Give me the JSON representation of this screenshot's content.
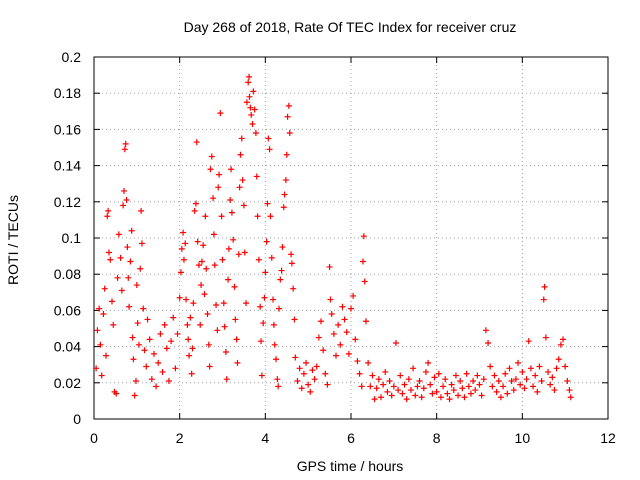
{
  "chart_data": {
    "type": "scatter",
    "title": "Day 268 of 2018, Rate Of TEC Index for receiver cruz",
    "xlabel": "GPS time / hours",
    "ylabel": "ROTI / TECUs",
    "xlim": [
      0,
      12
    ],
    "ylim": [
      0,
      0.2
    ],
    "x_ticks": [
      0,
      2,
      4,
      6,
      8,
      10,
      12
    ],
    "x_tick_labels": [
      "0",
      "2",
      "4",
      "6",
      "8",
      "10",
      "12"
    ],
    "y_ticks": [
      0,
      0.02,
      0.04,
      0.06,
      0.08,
      0.1,
      0.12,
      0.14,
      0.16,
      0.18,
      0.2
    ],
    "y_tick_labels": [
      "0",
      "0.02",
      "0.04",
      "0.06",
      "0.08",
      "0.1",
      "0.12",
      "0.14",
      "0.16",
      "0.18",
      "0.2"
    ],
    "grid": true,
    "marker": "+",
    "series": [
      {
        "name": "ROTI",
        "color": "#ff0000",
        "points": [
          [
            0.05,
            0.028
          ],
          [
            0.08,
            0.049
          ],
          [
            0.12,
            0.061
          ],
          [
            0.15,
            0.041
          ],
          [
            0.18,
            0.024
          ],
          [
            0.22,
            0.058
          ],
          [
            0.25,
            0.072
          ],
          [
            0.28,
            0.035
          ],
          [
            0.31,
            0.112
          ],
          [
            0.33,
            0.115
          ],
          [
            0.35,
            0.092
          ],
          [
            0.38,
            0.088
          ],
          [
            0.42,
            0.065
          ],
          [
            0.45,
            0.052
          ],
          [
            0.48,
            0.015
          ],
          [
            0.52,
            0.014
          ],
          [
            0.55,
            0.078
          ],
          [
            0.58,
            0.102
          ],
          [
            0.62,
            0.089
          ],
          [
            0.65,
            0.071
          ],
          [
            0.68,
            0.118
          ],
          [
            0.7,
            0.126
          ],
          [
            0.72,
            0.149
          ],
          [
            0.74,
            0.152
          ],
          [
            0.76,
            0.121
          ],
          [
            0.78,
            0.095
          ],
          [
            0.8,
            0.078
          ],
          [
            0.82,
            0.062
          ],
          [
            0.85,
            0.087
          ],
          [
            0.88,
            0.104
          ],
          [
            0.9,
            0.045
          ],
          [
            0.92,
            0.033
          ],
          [
            0.95,
            0.013
          ],
          [
            0.98,
            0.021
          ],
          [
            1.0,
            0.074
          ],
          [
            1.02,
            0.053
          ],
          [
            1.05,
            0.041
          ],
          [
            1.08,
            0.083
          ],
          [
            1.1,
            0.115
          ],
          [
            1.12,
            0.097
          ],
          [
            1.15,
            0.061
          ],
          [
            1.18,
            0.038
          ],
          [
            1.22,
            0.029
          ],
          [
            1.25,
            0.055
          ],
          [
            1.3,
            0.044
          ],
          [
            1.35,
            0.022
          ],
          [
            1.4,
            0.036
          ],
          [
            1.45,
            0.018
          ],
          [
            1.5,
            0.031
          ],
          [
            1.55,
            0.047
          ],
          [
            1.6,
            0.026
          ],
          [
            1.65,
            0.052
          ],
          [
            1.7,
            0.039
          ],
          [
            1.75,
            0.021
          ],
          [
            1.8,
            0.043
          ],
          [
            1.85,
            0.056
          ],
          [
            1.9,
            0.028
          ],
          [
            1.95,
            0.047
          ],
          [
            2.0,
            0.067
          ],
          [
            2.03,
            0.081
          ],
          [
            2.05,
            0.094
          ],
          [
            2.08,
            0.103
          ],
          [
            2.1,
            0.088
          ],
          [
            2.13,
            0.097
          ],
          [
            2.15,
            0.066
          ],
          [
            2.18,
            0.052
          ],
          [
            2.2,
            0.044
          ],
          [
            2.22,
            0.035
          ],
          [
            2.25,
            0.056
          ],
          [
            2.28,
            0.025
          ],
          [
            2.3,
            0.039
          ],
          [
            2.32,
            0.064
          ],
          [
            2.35,
            0.115
          ],
          [
            2.38,
            0.119
          ],
          [
            2.4,
            0.153
          ],
          [
            2.42,
            0.098
          ],
          [
            2.45,
            0.085
          ],
          [
            2.48,
            0.052
          ],
          [
            2.5,
            0.074
          ],
          [
            2.52,
            0.087
          ],
          [
            2.55,
            0.096
          ],
          [
            2.58,
            0.069
          ],
          [
            2.6,
            0.112
          ],
          [
            2.62,
            0.083
          ],
          [
            2.65,
            0.058
          ],
          [
            2.68,
            0.041
          ],
          [
            2.7,
            0.029
          ],
          [
            2.72,
            0.138
          ],
          [
            2.75,
            0.145
          ],
          [
            2.78,
            0.122
          ],
          [
            2.8,
            0.102
          ],
          [
            2.82,
            0.085
          ],
          [
            2.85,
            0.063
          ],
          [
            2.88,
            0.049
          ],
          [
            2.9,
            0.128
          ],
          [
            2.92,
            0.135
          ],
          [
            2.95,
            0.169
          ],
          [
            2.98,
            0.112
          ],
          [
            3.0,
            0.088
          ],
          [
            3.03,
            0.064
          ],
          [
            3.05,
            0.051
          ],
          [
            3.08,
            0.037
          ],
          [
            3.1,
            0.022
          ],
          [
            3.13,
            0.077
          ],
          [
            3.15,
            0.094
          ],
          [
            3.18,
            0.121
          ],
          [
            3.2,
            0.138
          ],
          [
            3.22,
            0.114
          ],
          [
            3.25,
            0.099
          ],
          [
            3.28,
            0.073
          ],
          [
            3.3,
            0.055
          ],
          [
            3.33,
            0.044
          ],
          [
            3.35,
            0.031
          ],
          [
            3.38,
            0.091
          ],
          [
            3.4,
            0.128
          ],
          [
            3.42,
            0.146
          ],
          [
            3.45,
            0.155
          ],
          [
            3.47,
            0.132
          ],
          [
            3.5,
            0.118
          ],
          [
            3.52,
            0.092
          ],
          [
            3.55,
            0.064
          ],
          [
            3.57,
            0.175
          ],
          [
            3.6,
            0.186
          ],
          [
            3.62,
            0.189
          ],
          [
            3.63,
            0.178
          ],
          [
            3.65,
            0.172
          ],
          [
            3.67,
            0.168
          ],
          [
            3.7,
            0.163
          ],
          [
            3.72,
            0.181
          ],
          [
            3.75,
            0.171
          ],
          [
            3.78,
            0.158
          ],
          [
            3.8,
            0.134
          ],
          [
            3.82,
            0.112
          ],
          [
            3.85,
            0.088
          ],
          [
            3.88,
            0.062
          ],
          [
            3.9,
            0.043
          ],
          [
            3.92,
            0.024
          ],
          [
            3.95,
            0.053
          ],
          [
            3.98,
            0.067
          ],
          [
            4.0,
            0.081
          ],
          [
            4.03,
            0.098
          ],
          [
            4.05,
            0.119
          ],
          [
            4.07,
            0.155
          ],
          [
            4.1,
            0.149
          ],
          [
            4.12,
            0.112
          ],
          [
            4.15,
            0.089
          ],
          [
            4.18,
            0.066
          ],
          [
            4.2,
            0.052
          ],
          [
            4.22,
            0.041
          ],
          [
            4.25,
            0.033
          ],
          [
            4.28,
            0.022
          ],
          [
            4.3,
            0.018
          ],
          [
            4.32,
            0.061
          ],
          [
            4.35,
            0.077
          ],
          [
            4.38,
            0.082
          ],
          [
            4.4,
            0.095
          ],
          [
            4.43,
            0.117
          ],
          [
            4.45,
            0.124
          ],
          [
            4.48,
            0.132
          ],
          [
            4.5,
            0.146
          ],
          [
            4.52,
            0.167
          ],
          [
            4.55,
            0.173
          ],
          [
            4.57,
            0.158
          ],
          [
            4.6,
            0.091
          ],
          [
            4.62,
            0.086
          ],
          [
            4.65,
            0.072
          ],
          [
            4.68,
            0.055
          ],
          [
            4.7,
            0.034
          ],
          [
            4.75,
            0.021
          ],
          [
            4.8,
            0.028
          ],
          [
            4.85,
            0.017
          ],
          [
            4.9,
            0.025
          ],
          [
            4.95,
            0.031
          ],
          [
            5.0,
            0.019
          ],
          [
            5.05,
            0.015
          ],
          [
            5.1,
            0.027
          ],
          [
            5.15,
            0.022
          ],
          [
            5.2,
            0.029
          ],
          [
            5.25,
            0.045
          ],
          [
            5.3,
            0.054
          ],
          [
            5.35,
            0.038
          ],
          [
            5.4,
            0.025
          ],
          [
            5.45,
            0.019
          ],
          [
            5.5,
            0.084
          ],
          [
            5.52,
            0.066
          ],
          [
            5.55,
            0.058
          ],
          [
            5.6,
            0.047
          ],
          [
            5.65,
            0.035
          ],
          [
            5.7,
            0.052
          ],
          [
            5.75,
            0.041
          ],
          [
            5.8,
            0.062
          ],
          [
            5.85,
            0.055
          ],
          [
            5.9,
            0.048
          ],
          [
            5.95,
            0.036
          ],
          [
            6.0,
            0.061
          ],
          [
            6.05,
            0.068
          ],
          [
            6.1,
            0.044
          ],
          [
            6.15,
            0.032
          ],
          [
            6.2,
            0.025
          ],
          [
            6.25,
            0.018
          ],
          [
            6.28,
            0.087
          ],
          [
            6.3,
            0.101
          ],
          [
            6.32,
            0.076
          ],
          [
            6.35,
            0.054
          ],
          [
            6.4,
            0.031
          ],
          [
            6.45,
            0.018
          ],
          [
            6.5,
            0.024
          ],
          [
            6.55,
            0.011
          ],
          [
            6.6,
            0.017
          ],
          [
            6.65,
            0.022
          ],
          [
            6.7,
            0.012
          ],
          [
            6.75,
            0.019
          ],
          [
            6.8,
            0.026
          ],
          [
            6.85,
            0.015
          ],
          [
            6.9,
            0.021
          ],
          [
            6.95,
            0.013
          ],
          [
            7.0,
            0.018
          ],
          [
            7.05,
            0.042
          ],
          [
            7.1,
            0.016
          ],
          [
            7.15,
            0.024
          ],
          [
            7.2,
            0.014
          ],
          [
            7.25,
            0.019
          ],
          [
            7.3,
            0.011
          ],
          [
            7.35,
            0.022
          ],
          [
            7.4,
            0.016
          ],
          [
            7.45,
            0.028
          ],
          [
            7.5,
            0.013
          ],
          [
            7.55,
            0.018
          ],
          [
            7.6,
            0.021
          ],
          [
            7.65,
            0.012
          ],
          [
            7.7,
            0.017
          ],
          [
            7.75,
            0.026
          ],
          [
            7.8,
            0.031
          ],
          [
            7.85,
            0.019
          ],
          [
            7.9,
            0.014
          ],
          [
            7.95,
            0.023
          ],
          [
            8.0,
            0.015
          ],
          [
            8.05,
            0.025
          ],
          [
            8.1,
            0.012
          ],
          [
            8.15,
            0.018
          ],
          [
            8.2,
            0.022
          ],
          [
            8.25,
            0.014
          ],
          [
            8.3,
            0.011
          ],
          [
            8.35,
            0.019
          ],
          [
            8.4,
            0.016
          ],
          [
            8.45,
            0.024
          ],
          [
            8.5,
            0.013
          ],
          [
            8.55,
            0.021
          ],
          [
            8.6,
            0.017
          ],
          [
            8.65,
            0.012
          ],
          [
            8.7,
            0.025
          ],
          [
            8.75,
            0.018
          ],
          [
            8.8,
            0.014
          ],
          [
            8.85,
            0.021
          ],
          [
            8.9,
            0.016
          ],
          [
            8.95,
            0.024
          ],
          [
            9.0,
            0.019
          ],
          [
            9.05,
            0.013
          ],
          [
            9.1,
            0.022
          ],
          [
            9.15,
            0.049
          ],
          [
            9.2,
            0.042
          ],
          [
            9.25,
            0.029
          ],
          [
            9.3,
            0.018
          ],
          [
            9.35,
            0.024
          ],
          [
            9.4,
            0.015
          ],
          [
            9.45,
            0.021
          ],
          [
            9.5,
            0.012
          ],
          [
            9.55,
            0.018
          ],
          [
            9.6,
            0.025
          ],
          [
            9.65,
            0.014
          ],
          [
            9.7,
            0.028
          ],
          [
            9.75,
            0.021
          ],
          [
            9.8,
            0.016
          ],
          [
            9.85,
            0.022
          ],
          [
            9.9,
            0.031
          ],
          [
            9.95,
            0.019
          ],
          [
            10.0,
            0.026
          ],
          [
            10.05,
            0.017
          ],
          [
            10.1,
            0.022
          ],
          [
            10.15,
            0.043
          ],
          [
            10.2,
            0.028
          ],
          [
            10.25,
            0.018
          ],
          [
            10.3,
            0.024
          ],
          [
            10.35,
            0.015
          ],
          [
            10.4,
            0.029
          ],
          [
            10.45,
            0.021
          ],
          [
            10.5,
            0.066
          ],
          [
            10.52,
            0.073
          ],
          [
            10.55,
            0.045
          ],
          [
            10.6,
            0.026
          ],
          [
            10.65,
            0.019
          ],
          [
            10.7,
            0.023
          ],
          [
            10.75,
            0.016
          ],
          [
            10.8,
            0.028
          ],
          [
            10.85,
            0.033
          ],
          [
            10.9,
            0.041
          ],
          [
            10.95,
            0.044
          ],
          [
            11.0,
            0.029
          ],
          [
            11.05,
            0.021
          ],
          [
            11.1,
            0.016
          ],
          [
            11.13,
            0.012
          ]
        ]
      }
    ]
  }
}
